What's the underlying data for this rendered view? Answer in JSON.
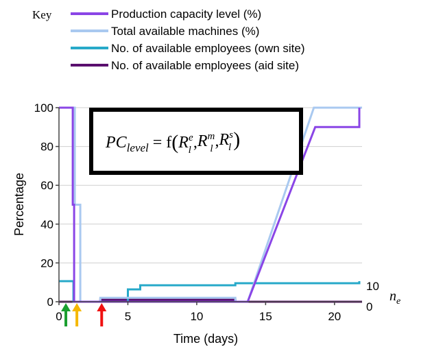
{
  "chart_data": {
    "type": "line",
    "title": "",
    "xlabel": "Time (days)",
    "ylabel": "Percentage",
    "xlim": [
      0,
      22
    ],
    "ylim": [
      0,
      100
    ],
    "x_ticks": [
      0,
      5,
      10,
      15,
      20
    ],
    "y_ticks": [
      0,
      20,
      40,
      60,
      80,
      100
    ],
    "y2_ticks": [
      "0",
      "10"
    ],
    "y2_label_italic": "n",
    "y2_label_sub": "e",
    "grid": "horizontal",
    "legend": {
      "title": "Key",
      "position": "top"
    },
    "formula": {
      "lhs": "PC",
      "lhs_sub": "level",
      "eq": " = f",
      "R": "R",
      "terms": [
        {
          "sup": "e",
          "sub": "l"
        },
        {
          "sup": "m",
          "sub": "l"
        },
        {
          "sup": "s",
          "sub": "l"
        }
      ],
      "comma": ","
    },
    "series": [
      {
        "name": "Production capacity level (%)",
        "color": "#8a45e6",
        "axis": "left",
        "points": [
          [
            0,
            100
          ],
          [
            1.0,
            100
          ],
          [
            1.0,
            50
          ],
          [
            1.1,
            50
          ],
          [
            1.1,
            0
          ],
          [
            13.7,
            0
          ],
          [
            18.6,
            90
          ],
          [
            21.8,
            90
          ],
          [
            21.8,
            100
          ]
        ]
      },
      {
        "name": "Total available machines (%)",
        "color": "#a9c9f0",
        "axis": "left",
        "points": [
          [
            0,
            100
          ],
          [
            1.15,
            100
          ],
          [
            1.15,
            50
          ],
          [
            1.55,
            50
          ],
          [
            1.55,
            0
          ],
          [
            3.0,
            0
          ],
          [
            3.0,
            2
          ],
          [
            12.8,
            2
          ],
          [
            12.8,
            0
          ],
          [
            13.7,
            0
          ],
          [
            18.5,
            100
          ],
          [
            22,
            100
          ]
        ]
      },
      {
        "name": "No. of available employees (own site)",
        "color": "#27a9c9",
        "axis": "right",
        "points": [
          [
            0,
            10
          ],
          [
            1.05,
            10
          ],
          [
            1.05,
            0
          ],
          [
            5.0,
            0
          ],
          [
            5.0,
            6
          ],
          [
            5.9,
            6
          ],
          [
            5.9,
            8
          ],
          [
            12.8,
            8
          ],
          [
            12.8,
            9
          ],
          [
            21.8,
            9
          ],
          [
            21.8,
            10
          ]
        ]
      },
      {
        "name": "No. of available employees (aid site)",
        "color": "#5a0f6e",
        "axis": "right",
        "points": [
          [
            0,
            0
          ],
          [
            3.0,
            0
          ],
          [
            3.0,
            1
          ],
          [
            12.8,
            1
          ],
          [
            12.8,
            0
          ],
          [
            22,
            0
          ]
        ]
      }
    ],
    "events": [
      {
        "day": 0.5,
        "color": "#1a9e2f"
      },
      {
        "day": 1.3,
        "color": "#f5b800"
      },
      {
        "day": 3.1,
        "color": "#f01010"
      }
    ]
  }
}
